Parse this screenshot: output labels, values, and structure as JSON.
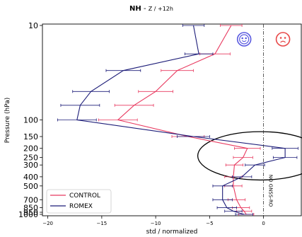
{
  "chart_data": {
    "type": "line",
    "orientation": "horizontal",
    "title_parts": [
      "NH",
      " - ",
      "Z / +12h"
    ],
    "xlabel": "std / normalized",
    "ylabel": "Pressure (hPa)",
    "xlim": [
      -20.5,
      3.5
    ],
    "ylim": [
      1000,
      10
    ],
    "y_scale": "log",
    "x_ticks": [
      -20,
      -15,
      -10,
      -5,
      0
    ],
    "x_tick_labels": [
      "−20",
      "−15",
      "−10",
      "−5",
      "0"
    ],
    "y_ticks": [
      10,
      100,
      150,
      200,
      250,
      300,
      400,
      500,
      700,
      850,
      950,
      1000
    ],
    "y_tick_labels": [
      "10",
      "100",
      "150",
      "200",
      "250",
      "300",
      "400",
      "500",
      "700",
      "850",
      "950",
      "1000"
    ],
    "y": [
      10,
      20,
      30,
      50,
      70,
      100,
      150,
      200,
      250,
      300,
      400,
      500,
      700,
      850,
      925,
      1000
    ],
    "series": [
      {
        "name": "CONTROL",
        "color": "#e8395f",
        "x": [
          -3.0,
          -4.5,
          -8.0,
          -10.0,
          -12.0,
          -13.5,
          -7.0,
          -1.5,
          -1.9,
          -2.7,
          -2.8,
          -2.8,
          -2.5,
          -2.1,
          -1.8,
          -1.6
        ],
        "xerr": [
          1.0,
          1.4,
          1.5,
          1.6,
          1.8,
          1.8,
          1.5,
          1.2,
          0.9,
          0.8,
          0.8,
          0.8,
          0.8,
          0.8,
          0.7,
          0.7
        ]
      },
      {
        "name": "ROMEX",
        "color": "#1c1c78",
        "x": [
          -6.5,
          -6.0,
          -13.0,
          -16.0,
          -17.0,
          -17.3,
          -6.5,
          2.0,
          2.0,
          -0.8,
          -2.0,
          -3.8,
          -3.8,
          -3.4,
          -2.8,
          -1.8
        ],
        "xerr": [
          1.0,
          1.3,
          1.6,
          1.7,
          1.8,
          1.8,
          1.5,
          1.2,
          1.1,
          0.9,
          0.9,
          0.9,
          0.9,
          0.9,
          0.8,
          0.8
        ]
      }
    ],
    "vline": {
      "x": 0,
      "style": "dash-dot",
      "label": "NO GNSS-RO"
    },
    "legend": {
      "placement": "bottom-left",
      "entries": [
        "CONTROL",
        "ROMEX"
      ]
    },
    "highlight_ellipse": {
      "x_center": -0.3,
      "p_center": 240,
      "x_half_width": 5.8,
      "p_from": 120,
      "p_to": 390
    },
    "faces": [
      {
        "kind": "happy",
        "color": "#5a5ae0",
        "x": -1.8,
        "p": 14
      },
      {
        "kind": "sad",
        "color": "#e84848",
        "x": 1.8,
        "p": 14
      }
    ],
    "grid": false
  }
}
